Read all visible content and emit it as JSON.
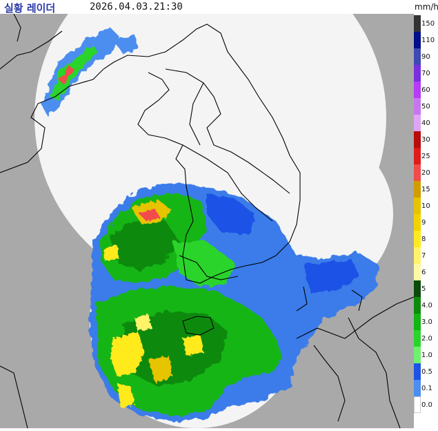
{
  "header": {
    "title": "실황 레이더",
    "timestamp": "2026.04.03.21:30",
    "unit": "mm/h"
  },
  "legend": {
    "items": [
      {
        "label": "150",
        "color": "#333333"
      },
      {
        "label": "110",
        "color": "#020d8a"
      },
      {
        "label": "90",
        "color": "#3f48b3"
      },
      {
        "label": "70",
        "color": "#7a2ee0"
      },
      {
        "label": "60",
        "color": "#b63cf5"
      },
      {
        "label": "50",
        "color": "#c876f0"
      },
      {
        "label": "40",
        "color": "#dea5f5"
      },
      {
        "label": "30",
        "color": "#b80b0b"
      },
      {
        "label": "25",
        "color": "#e01b1b"
      },
      {
        "label": "20",
        "color": "#f24b4b"
      },
      {
        "label": "15",
        "color": "#d19d00"
      },
      {
        "label": "10",
        "color": "#e6c400"
      },
      {
        "label": "9",
        "color": "#f2d300"
      },
      {
        "label": "8",
        "color": "#ffea1f"
      },
      {
        "label": "7",
        "color": "#fff36b"
      },
      {
        "label": "6",
        "color": "#fff9a3"
      },
      {
        "label": "5",
        "color": "#0a4a0a"
      },
      {
        "label": "4.0",
        "color": "#0b8a0b"
      },
      {
        "label": "3.0",
        "color": "#12b512"
      },
      {
        "label": "2.0",
        "color": "#2bd42b"
      },
      {
        "label": "1.0",
        "color": "#6ef26e"
      },
      {
        "label": "0.5",
        "color": "#1e53e6"
      },
      {
        "label": "0.1",
        "color": "#4b8ef0"
      },
      {
        "label": "0.0",
        "color": "#ffffff"
      }
    ]
  },
  "map": {
    "background_color": "#a9a9a9",
    "coverage_color": "#f4f4f4",
    "outline_color": "#000000"
  }
}
